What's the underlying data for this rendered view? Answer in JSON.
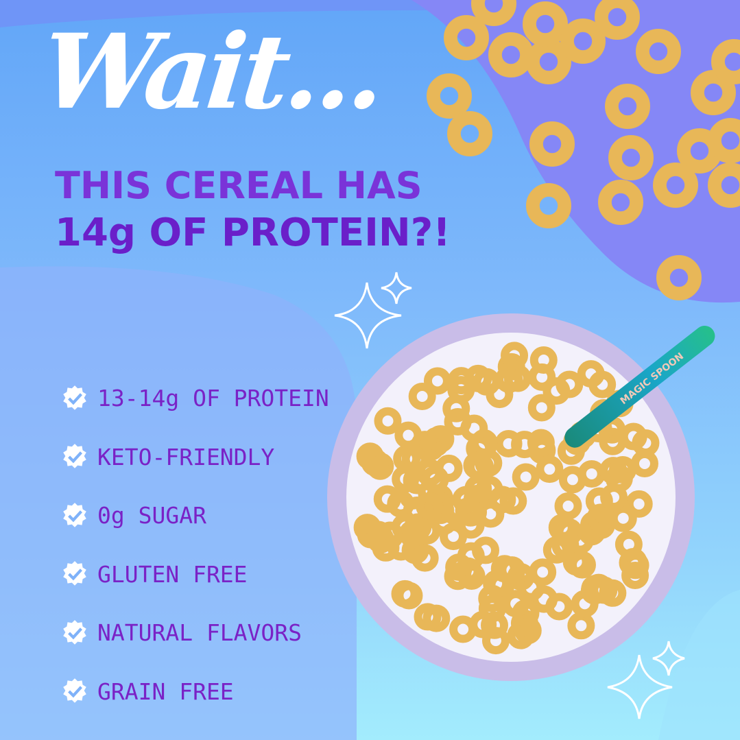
{
  "headline": {
    "script": "Wait...",
    "line1": "THIS CEREAL HAS",
    "line2": "14g OF PROTEIN?!"
  },
  "features": [
    {
      "icon": "verified-check-icon",
      "label": "13-14g OF PROTEIN"
    },
    {
      "icon": "verified-check-icon",
      "label": "KETO-FRIENDLY"
    },
    {
      "icon": "verified-check-icon",
      "label": "0g SUGAR"
    },
    {
      "icon": "verified-check-icon",
      "label": "GLUTEN FREE"
    },
    {
      "icon": "verified-check-icon",
      "label": "NATURAL FLAVORS"
    },
    {
      "icon": "verified-check-icon",
      "label": "GRAIN FREE"
    }
  ],
  "spoon_logo": "MAGIC SPOON",
  "colors": {
    "headline_purple": "#7a33d8",
    "list_purple": "#7a22c6",
    "blob": "#8a8cf5",
    "cereal": "#e8b758"
  }
}
